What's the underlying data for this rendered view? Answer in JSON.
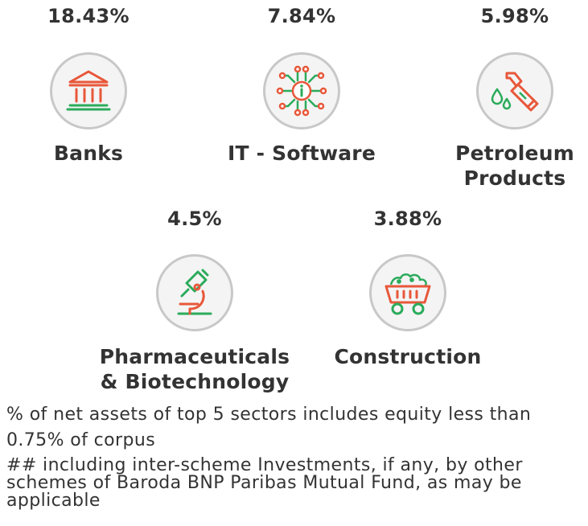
{
  "sectors": [
    {
      "percent": "18.43%",
      "name": "Banks",
      "icon": "bank-building-icon"
    },
    {
      "percent": "7.84%",
      "name": "IT - Software",
      "icon": "circuit-chip-icon"
    },
    {
      "percent": "5.98%",
      "name_line1": "Petroleum",
      "name_line2": "Products",
      "icon": "fuel-nozzle-icon"
    },
    {
      "percent": "4.5%",
      "name_line1": "Pharmaceuticals",
      "name_line2": "& Biotechnology",
      "icon": "microscope-icon"
    },
    {
      "percent": "3.88%",
      "name": "Construction",
      "icon": "mining-cart-icon"
    }
  ],
  "footnotes": {
    "note1": "% of net assets of top 5 sectors includes equity less than 0.75% of corpus",
    "note2": "## including inter-scheme Investments, if any, by other schemes of Baroda BNP Paribas Mutual Fund, as may be applicable"
  },
  "colors": {
    "accent_orange": "#e8573a",
    "accent_green": "#2bab5b",
    "circle_border": "#c8c8c8",
    "circle_fill": "#f4f4f4"
  }
}
